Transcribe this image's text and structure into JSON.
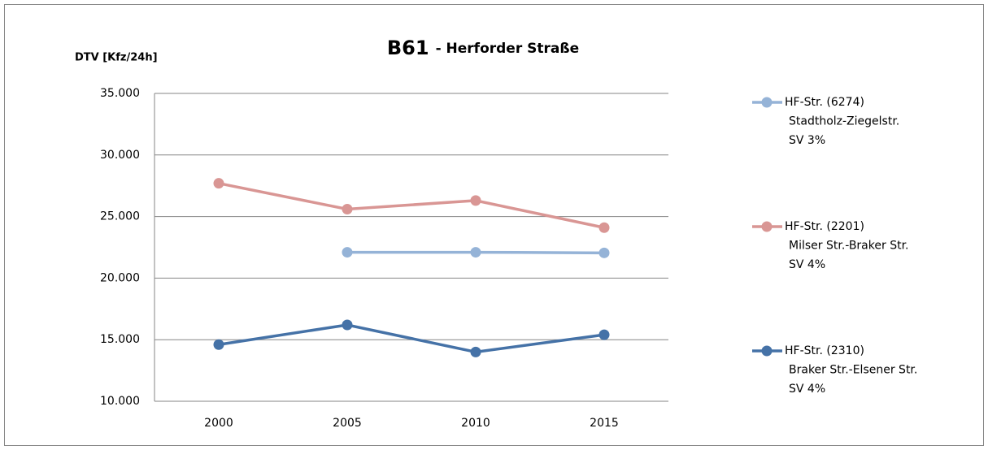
{
  "chart_data": {
    "type": "line",
    "title": "B61",
    "subtitle": "- Herforder Straße",
    "y_label": "DTV [Kfz/24h]",
    "categories": [
      "2000",
      "2005",
      "2010",
      "2015"
    ],
    "series": [
      {
        "name": [
          "HF-Str. (6274)",
          "Stadtholz-Ziegelstr.",
          "SV 3%"
        ],
        "color": "#95b3d7",
        "values": [
          null,
          22100,
          22100,
          22050
        ]
      },
      {
        "name": [
          "HF-Str. (2201)",
          "Milser Str.-Braker Str.",
          "SV 4%"
        ],
        "color": "#d99694",
        "values": [
          27700,
          25600,
          26300,
          24100
        ]
      },
      {
        "name": [
          "HF-Str. (2310)",
          "Braker Str.-Elsener Str.",
          "SV 4%"
        ],
        "color": "#4572a7",
        "values": [
          14600,
          16200,
          14000,
          15400
        ]
      }
    ],
    "ylim": [
      10000,
      35000
    ],
    "yticks": [
      {
        "value": 10000,
        "label": "10.000"
      },
      {
        "value": 15000,
        "label": "15.000"
      },
      {
        "value": 20000,
        "label": "20.000"
      },
      {
        "value": 25000,
        "label": "25.000"
      },
      {
        "value": 30000,
        "label": "30.000"
      },
      {
        "value": 35000,
        "label": "35.000"
      }
    ],
    "grid": true,
    "legend": "right"
  }
}
